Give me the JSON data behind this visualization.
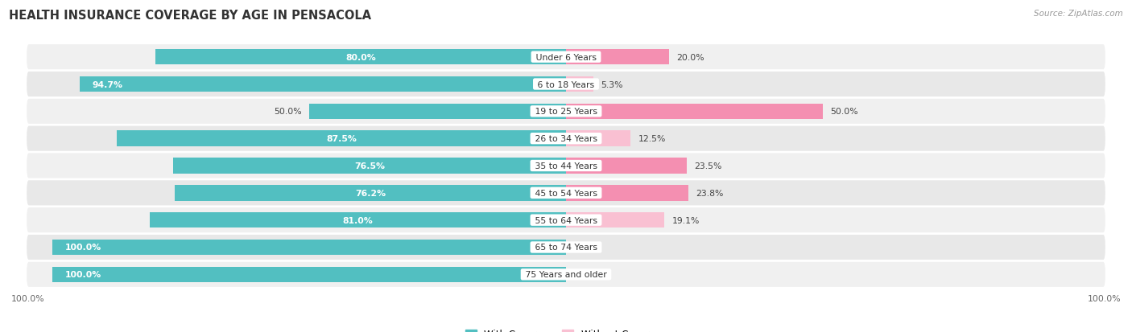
{
  "title": "HEALTH INSURANCE COVERAGE BY AGE IN PENSACOLA",
  "source": "Source: ZipAtlas.com",
  "categories": [
    "Under 6 Years",
    "6 to 18 Years",
    "19 to 25 Years",
    "26 to 34 Years",
    "35 to 44 Years",
    "45 to 54 Years",
    "55 to 64 Years",
    "65 to 74 Years",
    "75 Years and older"
  ],
  "with_coverage": [
    80.0,
    94.7,
    50.0,
    87.5,
    76.5,
    76.2,
    81.0,
    100.0,
    100.0
  ],
  "without_coverage": [
    20.0,
    5.3,
    50.0,
    12.5,
    23.5,
    23.8,
    19.1,
    0.0,
    0.0
  ],
  "color_with": "#52BFC1",
  "color_without": "#F48FB1",
  "color_without_light": "#F9C0D2",
  "title_fontsize": 10.5,
  "bar_height": 0.58,
  "figsize": [
    14.06,
    4.14
  ],
  "dpi": 100,
  "row_color_odd": "#f0f0f0",
  "row_color_even": "#e6e6e6"
}
